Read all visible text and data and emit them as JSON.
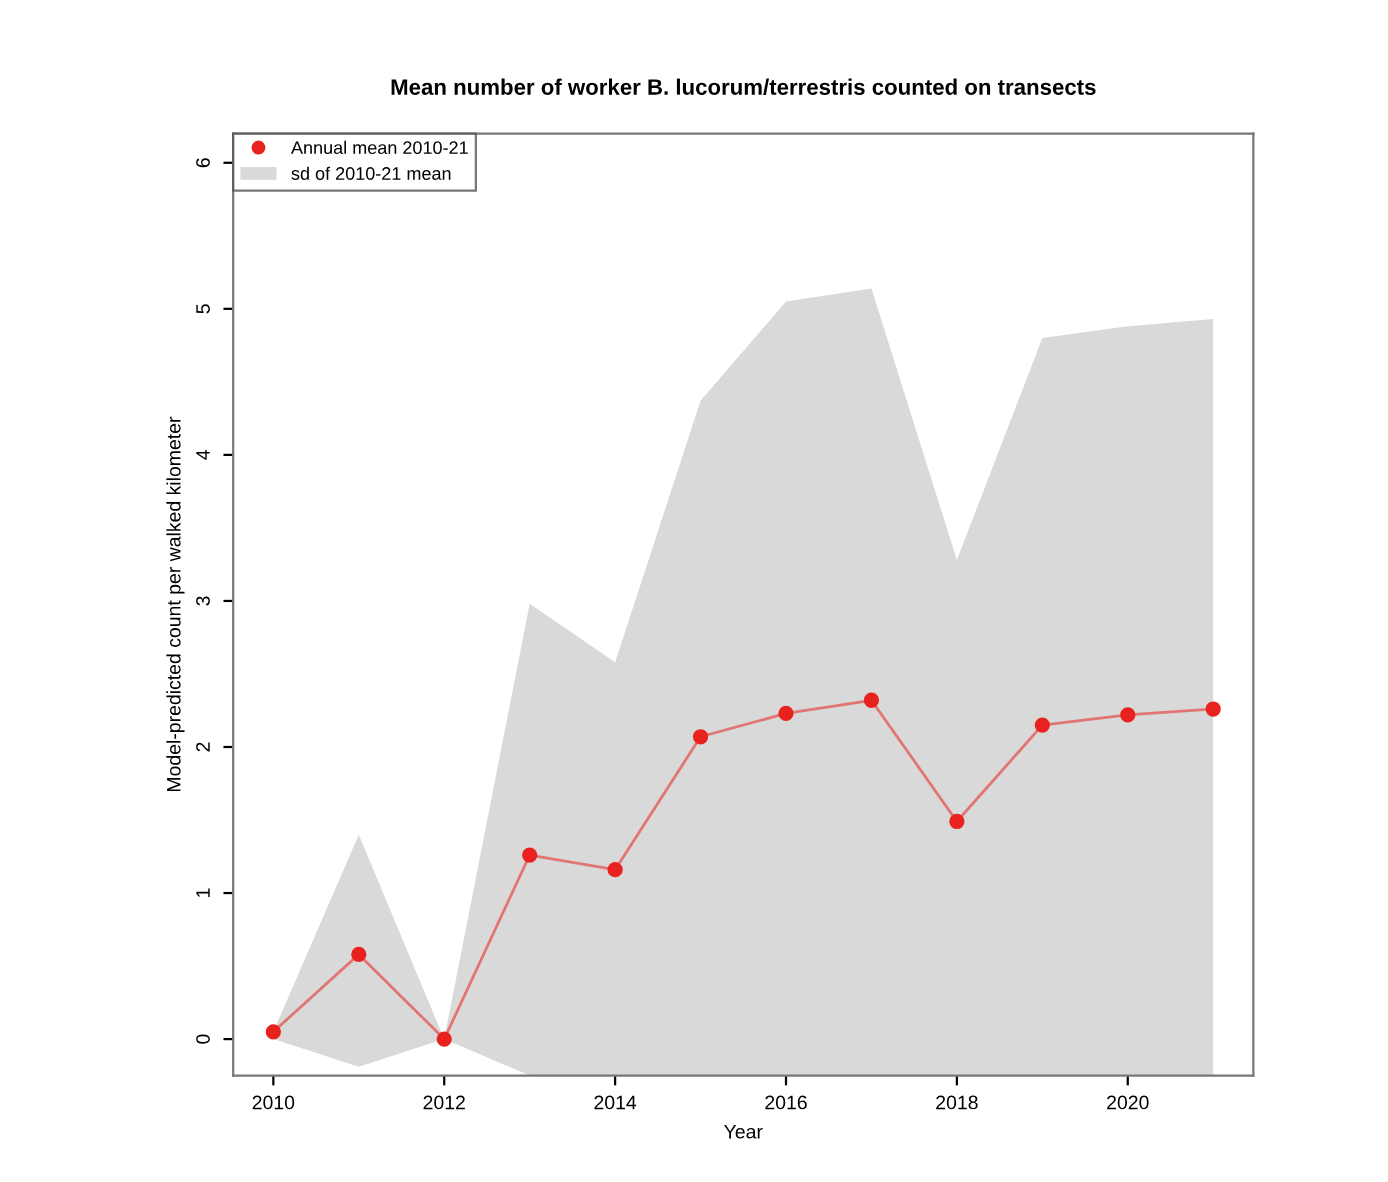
{
  "chart_data": {
    "type": "line",
    "title": "Mean number of worker B. lucorum/terrestris counted on transects",
    "xlabel": "Year",
    "ylabel": "Model-predicted count per walked kilometer",
    "annotations": [
      "sd of 2010-21 mean"
    ],
    "x": [
      2010,
      2011,
      2012,
      2013,
      2014,
      2015,
      2016,
      2017,
      2018,
      2019,
      2020,
      2021
    ],
    "series": [
      {
        "name": "Annual mean 2010-21",
        "color": "#e8231f",
        "marker": "circle",
        "values": [
          0.05,
          0.58,
          0.0,
          1.26,
          1.16,
          2.07,
          2.23,
          2.32,
          1.49,
          2.15,
          2.22,
          2.26
        ],
        "lower": [
          0.0,
          -0.19,
          0.0,
          -0.25,
          -0.25,
          -0.25,
          -0.25,
          -0.25,
          -0.25,
          -0.25,
          -0.25,
          -0.25
        ],
        "upper": [
          0.05,
          1.4,
          0.0,
          2.98,
          2.58,
          4.37,
          5.05,
          5.14,
          3.28,
          4.8,
          4.88,
          4.93
        ]
      }
    ],
    "xlim": [
      2009.53,
      2021.47
    ],
    "ylim": [
      -0.25,
      6.2
    ],
    "xticks": [
      2010,
      2012,
      2014,
      2016,
      2018,
      2020
    ],
    "yticks": [
      0,
      1,
      2,
      3,
      4,
      5,
      6
    ],
    "grid": false,
    "legend": "top left"
  }
}
